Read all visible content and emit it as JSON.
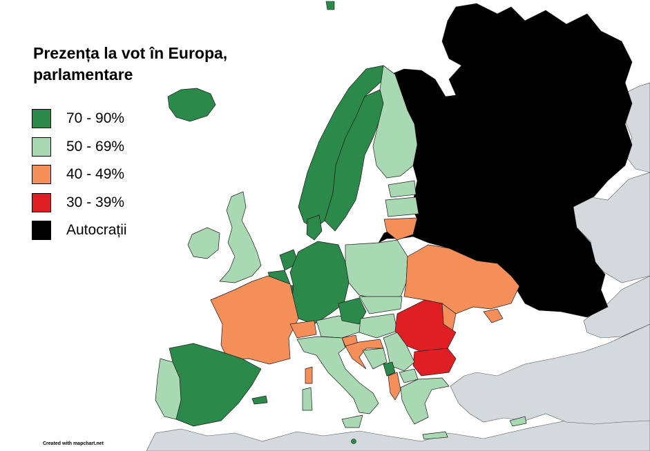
{
  "map": {
    "title_line1": "Prezența la vot în Europa,",
    "title_line2": "parlamentare",
    "credit": "Created with mapchart.net",
    "colors": {
      "sea": "#ffffff",
      "outside": "#d3d9dd",
      "band_70_90": "#2b8a4a",
      "band_50_69": "#a9d9b2",
      "band_40_49": "#f58f5a",
      "band_30_39": "#e01f24",
      "autocracy": "#000000",
      "border": "#1a1a1a"
    },
    "legend": [
      {
        "label": "70 - 90%",
        "color": "#2b8a4a"
      },
      {
        "label": "50 - 69%",
        "color": "#a9d9b2"
      },
      {
        "label": "40 - 49%",
        "color": "#f58f5a"
      },
      {
        "label": "30 - 39%",
        "color": "#e01f24"
      },
      {
        "label": "Autocrații",
        "color": "#000000"
      }
    ]
  }
}
